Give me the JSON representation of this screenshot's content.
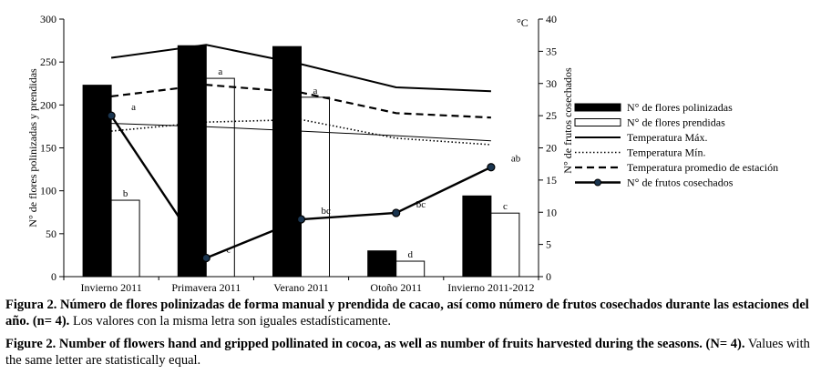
{
  "chart_data": {
    "type": "bar",
    "categories": [
      "Invierno 2011",
      "Primavera 2011",
      "Verano 2011",
      "Otoño 2011",
      "Invierno 2011-2012"
    ],
    "y_left": {
      "label": "N° de flores polinizadas y prendidas",
      "ylim": [
        0,
        300
      ],
      "ticks": [
        "0",
        "50",
        "100",
        "150",
        "200",
        "250",
        "300"
      ]
    },
    "y_right": {
      "label": "N° de frutos cosechados",
      "unit": "°C",
      "ylim": [
        0,
        40
      ],
      "ticks": [
        "0",
        "5",
        "10",
        "15",
        "20",
        "25",
        "30",
        "35",
        "40"
      ]
    },
    "series": [
      {
        "name": "N° de flores polinizadas",
        "kind": "bar",
        "axis": "left",
        "color": "#000000",
        "values": [
          223,
          269,
          268,
          30,
          94
        ]
      },
      {
        "name": "N° de flores prendidas",
        "kind": "bar",
        "axis": "left",
        "color": "#ffffff",
        "values": [
          89,
          231,
          209,
          18,
          74
        ]
      },
      {
        "name": "Temperatura Máx.",
        "kind": "line",
        "style": "solid-thick",
        "axis": "right",
        "values": [
          34,
          36,
          33,
          29.4,
          28.8
        ]
      },
      {
        "name": "Temperatura Mín.",
        "kind": "line",
        "style": "dotted",
        "axis": "right",
        "values": [
          22.6,
          24,
          24.4,
          21.5,
          20.5
        ]
      },
      {
        "name": "Temperatura promedio de estación",
        "kind": "line",
        "style": "dashed",
        "axis": "right",
        "values": [
          28,
          29.8,
          28.6,
          25.4,
          24.7
        ]
      },
      {
        "name": "N° de frutos cosechados",
        "kind": "line-marker",
        "axis": "right",
        "values": [
          25,
          2.9,
          8.9,
          9.9,
          17
        ]
      }
    ],
    "thin_line": {
      "axis": "right",
      "values": [
        23.8,
        23.3,
        22.6,
        21.9,
        21.1
      ]
    },
    "flower_labels": [
      "b",
      "a",
      "a",
      "d",
      "c"
    ],
    "fruit_labels": [
      "a",
      "c",
      "bc",
      "bc",
      "ab"
    ],
    "legend_position": "right"
  },
  "caption": {
    "es_bold": "Figura 2. Número de flores polinizadas de forma manual y prendida de cacao, así como número de frutos cosechados durante las estaciones del año. (n= 4).",
    "es_normal": " Los valores con la misma letra son iguales estadísticamente.",
    "en_bold": "Figure 2. Number of flowers hand and gripped pollinated in cocoa, as well as number of fruits harvested during the seasons. (N= 4).",
    "en_normal": " Values with the same letter are statistically equal."
  }
}
